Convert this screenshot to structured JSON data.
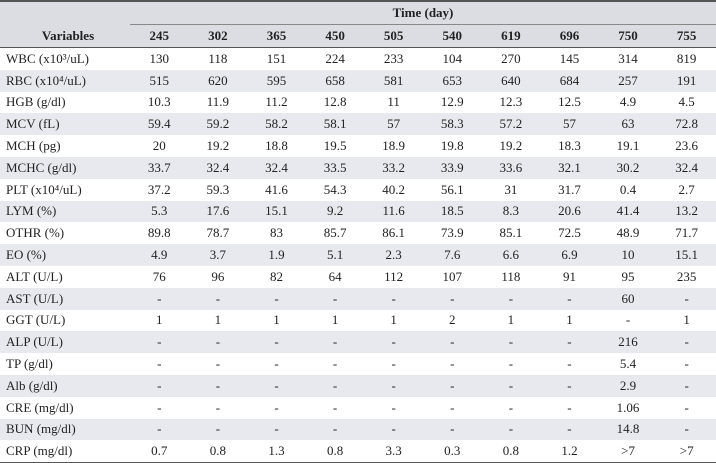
{
  "table": {
    "group_header": "Time (day)",
    "columns": [
      "Variables",
      "245",
      "302",
      "365",
      "450",
      "505",
      "540",
      "619",
      "696",
      "750",
      "755"
    ],
    "rows": [
      [
        "WBC (x10³/uL)",
        "130",
        "118",
        "151",
        "224",
        "233",
        "104",
        "270",
        "145",
        "314",
        "819"
      ],
      [
        "RBC (x10⁴/uL)",
        "515",
        "620",
        "595",
        "658",
        "581",
        "653",
        "640",
        "684",
        "257",
        "191"
      ],
      [
        "HGB (g/dl)",
        "10.3",
        "11.9",
        "11.2",
        "12.8",
        "11",
        "12.9",
        "12.3",
        "12.5",
        "4.9",
        "4.5"
      ],
      [
        "MCV (fL)",
        "59.4",
        "59.2",
        "58.2",
        "58.1",
        "57",
        "58.3",
        "57.2",
        "57",
        "63",
        "72.8"
      ],
      [
        "MCH (pg)",
        "20",
        "19.2",
        "18.8",
        "19.5",
        "18.9",
        "19.8",
        "19.2",
        "18.3",
        "19.1",
        "23.6"
      ],
      [
        "MCHC (g/dl)",
        "33.7",
        "32.4",
        "32.4",
        "33.5",
        "33.2",
        "33.9",
        "33.6",
        "32.1",
        "30.2",
        "32.4"
      ],
      [
        "PLT (x10⁴/uL)",
        "37.2",
        "59.3",
        "41.6",
        "54.3",
        "40.2",
        "56.1",
        "31",
        "31.7",
        "0.4",
        "2.7"
      ],
      [
        "LYM (%)",
        "5.3",
        "17.6",
        "15.1",
        "9.2",
        "11.6",
        "18.5",
        "8.3",
        "20.6",
        "41.4",
        "13.2"
      ],
      [
        "OTHR (%)",
        "89.8",
        "78.7",
        "83",
        "85.7",
        "86.1",
        "73.9",
        "85.1",
        "72.5",
        "48.9",
        "71.7"
      ],
      [
        "EO (%)",
        "4.9",
        "3.7",
        "1.9",
        "5.1",
        "2.3",
        "7.6",
        "6.6",
        "6.9",
        "10",
        "15.1"
      ],
      [
        "ALT (U/L)",
        "76",
        "96",
        "82",
        "64",
        "112",
        "107",
        "118",
        "91",
        "95",
        "235"
      ],
      [
        "AST (U/L)",
        "-",
        "-",
        "-",
        "-",
        "-",
        "-",
        "-",
        "-",
        "60",
        "-"
      ],
      [
        "GGT (U/L)",
        "1",
        "1",
        "1",
        "1",
        "1",
        "2",
        "1",
        "1",
        "-",
        "1"
      ],
      [
        "ALP (U/L)",
        "-",
        "-",
        "-",
        "-",
        "-",
        "-",
        "-",
        "-",
        "216",
        "-"
      ],
      [
        "TP (g/dl)",
        "-",
        "-",
        "-",
        "-",
        "-",
        "-",
        "-",
        "-",
        "5.4",
        "-"
      ],
      [
        "Alb (g/dl)",
        "-",
        "-",
        "-",
        "-",
        "-",
        "-",
        "-",
        "-",
        "2.9",
        "-"
      ],
      [
        "CRE (mg/dl)",
        "-",
        "-",
        "-",
        "-",
        "-",
        "-",
        "-",
        "-",
        "1.06",
        "-"
      ],
      [
        "BUN (mg/dl)",
        "-",
        "-",
        "-",
        "-",
        "-",
        "-",
        "-",
        "-",
        "14.8",
        "-"
      ],
      [
        "CRP (mg/dl)",
        "0.7",
        "0.8",
        "1.3",
        "0.8",
        "3.3",
        "0.3",
        "0.8",
        "1.2",
        ">7",
        ">7"
      ]
    ]
  }
}
